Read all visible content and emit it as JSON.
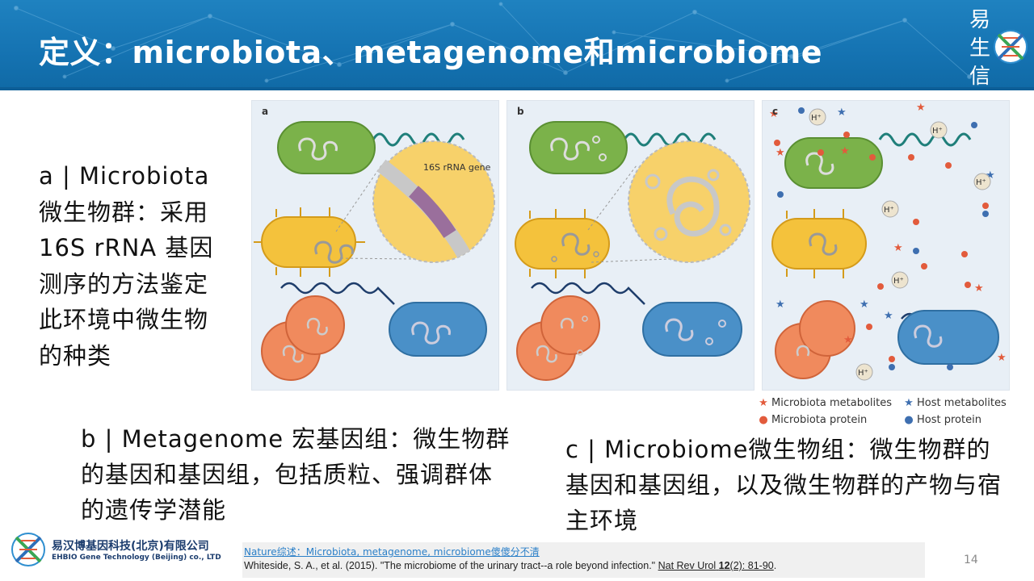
{
  "header": {
    "title": "定义：microbiota、metagenome和microbiome",
    "logo_chars": [
      "易",
      "生",
      "信"
    ]
  },
  "figure": {
    "panels": [
      {
        "letter": "a",
        "callout": "16S rRNA gene"
      },
      {
        "letter": "b"
      },
      {
        "letter": "c",
        "ion_label": "H⁺"
      }
    ],
    "legend": [
      {
        "label": "Microbiota metabolites",
        "icon": "star-icon",
        "color": "#e25b3c"
      },
      {
        "label": "Host metabolites",
        "icon": "star-icon",
        "color": "#3e6fb0"
      },
      {
        "label": "Microbiota protein",
        "icon": "dot-icon",
        "color": "#e25b3c"
      },
      {
        "label": "Host protein",
        "icon": "dot-icon",
        "color": "#3e6fb0"
      }
    ]
  },
  "text": {
    "a": "a | Microbiota 微生物群：采用 16S rRNA 基因测序的方法鉴定此环境中微生物的种类",
    "b": "b | Metagenome 宏基因组：微生物群的基因和基因组，包括质粒、强调群体的遗传学潜能",
    "c": "c | Microbiome微生物组：微生物群的基因和基因组，以及微生物群的产物与宿主环境"
  },
  "company": {
    "name_cn": "易汉博基因科技(北京)有限公司",
    "name_en": "EHBIO Gene Technology (Beijing) co., LTD"
  },
  "reference": {
    "link": "Nature综述：Microbiota, metagenome, microbiome傻傻分不清",
    "cite_prefix": "Whiteside, S. A., et al. (2015). \"The microbiome of the urinary tract--a role beyond infection.\" ",
    "journal": "Nat Rev Urol",
    "volume": "12",
    "issue": "(2): 81-90",
    "end": "."
  },
  "page_number": "14",
  "colors": {
    "header_blue": "#1573b2",
    "bacterium_green": "#7bb24a",
    "bacterium_yellow": "#f4c23c",
    "bacterium_orange": "#f08a5d",
    "bacterium_blue": "#4a90c8",
    "dna_teal": "#1f7f7a"
  }
}
